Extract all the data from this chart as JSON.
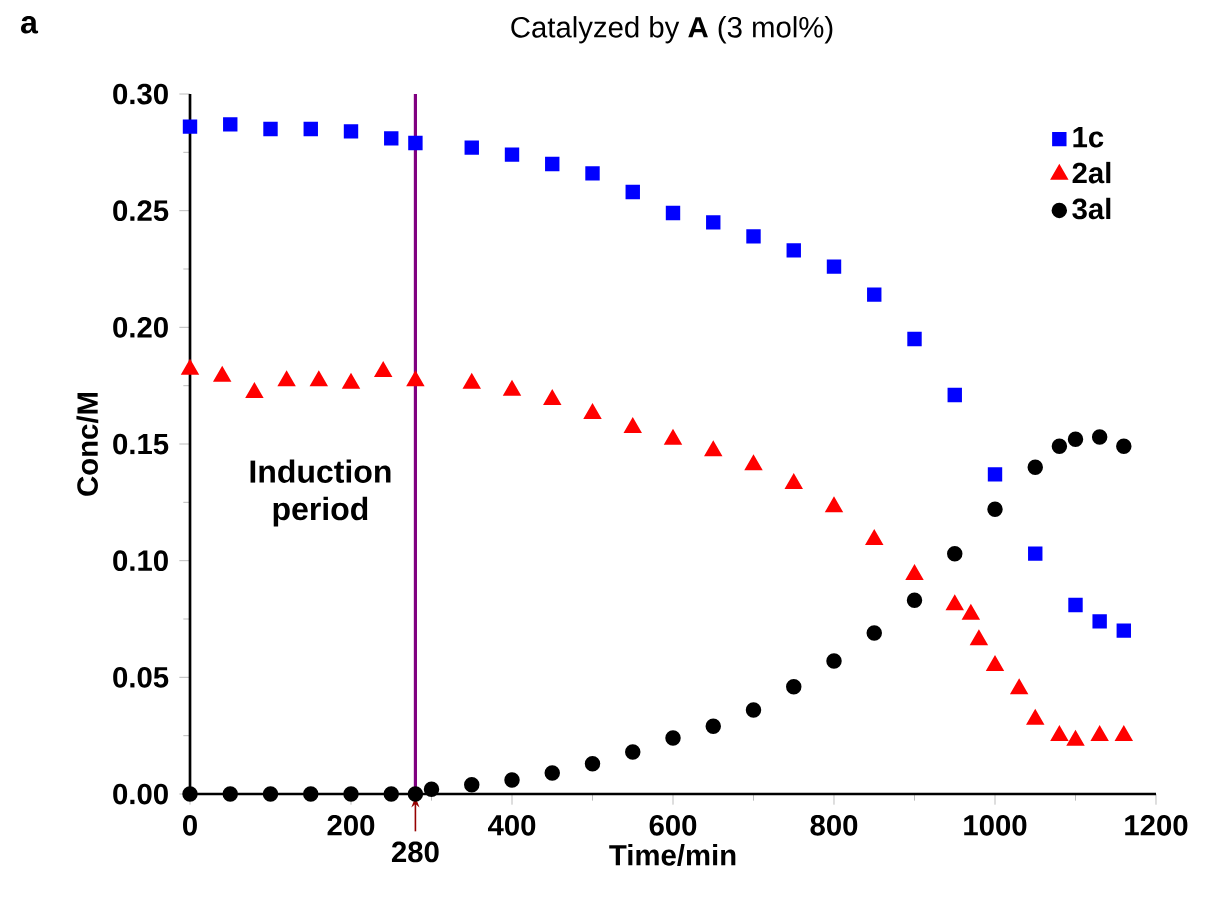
{
  "chart_data": {
    "type": "scatter",
    "title": "Catalyzed by **A** (3 mol%)",
    "xlabel": "Time/min",
    "ylabel": "Conc/M",
    "annotations": [
      "a",
      "Induction period"
    ],
    "series": [
      {
        "name": "1c",
        "color": "#0000ff",
        "marker": "square",
        "x": [
          0,
          50,
          100,
          150,
          200,
          250,
          280,
          350,
          400,
          450,
          500,
          550,
          600,
          650,
          700,
          750,
          800,
          850,
          900,
          950,
          1000,
          1050,
          1100,
          1130,
          1160
        ],
        "values": [
          0.286,
          0.287,
          0.285,
          0.285,
          0.284,
          0.281,
          0.279,
          0.277,
          0.274,
          0.27,
          0.266,
          0.258,
          0.249,
          0.245,
          0.239,
          0.233,
          0.226,
          0.214,
          0.195,
          0.171,
          0.137,
          0.103,
          0.081,
          0.074,
          0.07
        ]
      },
      {
        "name": "2al",
        "color": "#ff0000",
        "marker": "triangle",
        "x": [
          0,
          40,
          80,
          120,
          160,
          200,
          240,
          280,
          350,
          400,
          450,
          500,
          550,
          600,
          650,
          700,
          750,
          800,
          850,
          900,
          950,
          970,
          980,
          1000,
          1030,
          1050,
          1080,
          1100,
          1130,
          1160
        ],
        "values": [
          0.182,
          0.179,
          0.172,
          0.177,
          0.177,
          0.176,
          0.181,
          0.177,
          0.176,
          0.173,
          0.169,
          0.163,
          0.157,
          0.152,
          0.147,
          0.141,
          0.133,
          0.123,
          0.109,
          0.094,
          0.081,
          0.077,
          0.066,
          0.055,
          0.045,
          0.032,
          0.025,
          0.023,
          0.025,
          0.025
        ]
      },
      {
        "name": "3al",
        "color": "#000000",
        "marker": "circle",
        "x": [
          0,
          50,
          100,
          150,
          200,
          250,
          280,
          300,
          350,
          400,
          450,
          500,
          550,
          600,
          650,
          700,
          750,
          800,
          850,
          900,
          950,
          1000,
          1050,
          1080,
          1100,
          1130,
          1160
        ],
        "values": [
          0.0,
          0.0,
          0.0,
          0.0,
          0.0,
          0.0,
          0.0,
          0.002,
          0.004,
          0.006,
          0.009,
          0.013,
          0.018,
          0.024,
          0.029,
          0.036,
          0.046,
          0.057,
          0.069,
          0.083,
          0.103,
          0.122,
          0.14,
          0.149,
          0.152,
          0.153,
          0.149
        ]
      }
    ],
    "xlim": [
      0,
      1200
    ],
    "ylim": [
      0,
      0.3
    ],
    "xticks": [
      0,
      200,
      400,
      600,
      800,
      1000,
      1200
    ],
    "yticks": [
      {
        "value": 0,
        "label": "0.00"
      },
      {
        "value": 0.05,
        "label": "0.05"
      },
      {
        "value": 0.1,
        "label": "0.10"
      },
      {
        "value": 0.15,
        "label": "0.15"
      },
      {
        "value": 0.2,
        "label": "0.20"
      },
      {
        "value": 0.25,
        "label": "0.25"
      },
      {
        "value": 0.3,
        "label": "0.30"
      }
    ],
    "ref_lines": [
      {
        "axis": "x",
        "value": 280,
        "label": "280",
        "color": "#800080"
      }
    ],
    "legend": "top right",
    "grid": false
  }
}
